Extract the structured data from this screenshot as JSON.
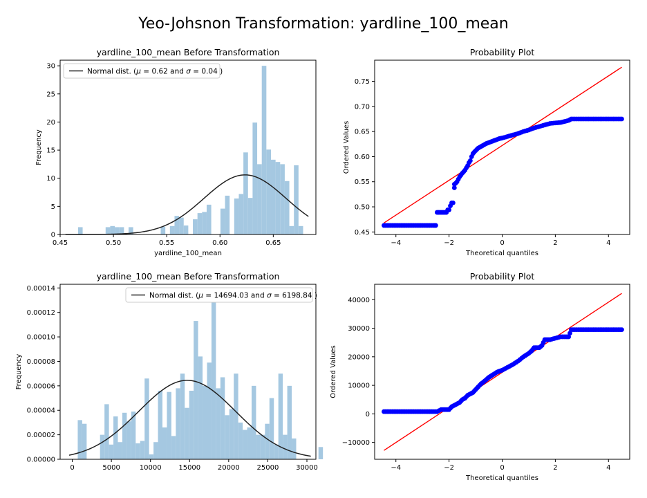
{
  "figure": {
    "suptitle": "Yeo-Johsnon Transformation: yardline_100_mean"
  },
  "colors": {
    "hist": "#a5c8e1",
    "curve": "#222222",
    "points": "#0000ff",
    "line": "#ff0000",
    "axis": "#000000"
  },
  "chart_data": [
    {
      "id": "hist_before",
      "type": "bar",
      "title": "yardline_100_mean Before Transformation",
      "xlabel": "yardline_100_mean",
      "ylabel": "Frequency",
      "xlim": [
        0.45,
        0.69
      ],
      "ylim": [
        0,
        31
      ],
      "xticks": [
        0.45,
        0.5,
        0.55,
        0.6,
        0.65
      ],
      "xtick_labels": [
        "0.45",
        "0.50",
        "0.55",
        "0.60",
        "0.65"
      ],
      "yticks": [
        0,
        5,
        10,
        15,
        20,
        25,
        30
      ],
      "ytick_labels": [
        "0",
        "5",
        "10",
        "15",
        "20",
        "25",
        "30"
      ],
      "bin_start": 0.4625,
      "bin_width": 0.00431,
      "values": [
        0,
        1.3,
        0,
        0,
        0,
        0,
        0,
        1.3,
        1.5,
        1.3,
        1.3,
        0,
        1.3,
        0,
        0,
        0,
        0,
        0,
        0,
        1.4,
        0,
        1.5,
        3.3,
        3.0,
        1.6,
        0,
        2.7,
        3.8,
        4.0,
        5.3,
        0,
        0,
        4.6,
        6.9,
        0,
        6.4,
        7.2,
        14.6,
        6.5,
        19.9,
        12.5,
        30.0,
        15.1,
        13.3,
        12.9,
        12.5,
        9.5,
        1.5,
        12.3,
        1.5
      ],
      "curve": {
        "mean": 0.6235,
        "sd": 0.0385,
        "peak": 10.6,
        "x_start": 0.455,
        "x_end": 0.683
      },
      "legend": "Normal dist. ($\\mu=$ 0.62 and $\\sigma=$ 0.04 )",
      "legend_position": "top-left"
    },
    {
      "id": "prob_before",
      "type": "scatter",
      "title": "Probability Plot",
      "xlabel": "Theoretical quantiles",
      "ylabel": "Ordered Values",
      "xlim": [
        -4.8,
        4.8
      ],
      "ylim": [
        0.445,
        0.792
      ],
      "xticks": [
        -4,
        -2,
        0,
        2,
        4
      ],
      "xtick_labels": [
        "−4",
        "−2",
        "0",
        "2",
        "4"
      ],
      "yticks": [
        0.45,
        0.5,
        0.55,
        0.6,
        0.65,
        0.7,
        0.75
      ],
      "ytick_labels": [
        "0.45",
        "0.50",
        "0.55",
        "0.60",
        "0.65",
        "0.70",
        "0.75"
      ],
      "points_x": [
        -4.45,
        -4.2,
        -4.0,
        -3.8,
        -3.6,
        -3.4,
        -3.2,
        -3.0,
        -2.8,
        -2.6,
        -2.5,
        -2.45,
        -2.4,
        -2.3,
        -2.2,
        -2.1,
        -2.05,
        -2.0,
        -1.95,
        -1.9,
        -1.85,
        -1.8,
        -1.8,
        -1.75,
        -1.7,
        -1.65,
        -1.6,
        -1.5,
        -1.4,
        -1.3,
        -1.25,
        -1.2,
        -1.15,
        -1.1,
        -1.0,
        -0.9,
        -0.8,
        -0.7,
        -0.6,
        -0.5,
        -0.4,
        -0.3,
        -0.2,
        -0.1,
        0.0,
        0.2,
        0.4,
        0.6,
        0.8,
        1.0,
        1.2,
        1.4,
        1.6,
        1.8,
        2.0,
        2.2,
        2.5,
        2.6,
        3.0,
        3.5,
        4.0,
        4.5
      ],
      "points_y": [
        0.463,
        0.463,
        0.463,
        0.463,
        0.463,
        0.463,
        0.463,
        0.463,
        0.463,
        0.463,
        0.463,
        0.489,
        0.489,
        0.489,
        0.489,
        0.489,
        0.494,
        0.494,
        0.502,
        0.508,
        0.508,
        0.538,
        0.545,
        0.547,
        0.55,
        0.555,
        0.56,
        0.567,
        0.573,
        0.582,
        0.588,
        0.592,
        0.6,
        0.606,
        0.612,
        0.617,
        0.62,
        0.623,
        0.626,
        0.628,
        0.63,
        0.632,
        0.634,
        0.636,
        0.637,
        0.64,
        0.643,
        0.646,
        0.65,
        0.653,
        0.657,
        0.66,
        0.663,
        0.666,
        0.667,
        0.668,
        0.672,
        0.675,
        0.675,
        0.675,
        0.675,
        0.675
      ],
      "fit_line": {
        "x": [
          -4.45,
          4.5
        ],
        "y": [
          0.468,
          0.778
        ]
      }
    },
    {
      "id": "hist_after",
      "type": "bar",
      "title": "yardline_100_mean Before Transformation",
      "xlabel": "",
      "ylabel": "Frequency",
      "xlim": [
        -1550,
        31150
      ],
      "ylim": [
        0,
        0.000143
      ],
      "xticks": [
        0,
        5000,
        10000,
        15000,
        20000,
        25000,
        30000
      ],
      "xtick_labels": [
        "0",
        "5000",
        "10000",
        "15000",
        "20000",
        "25000",
        "30000"
      ],
      "yticks": [
        0,
        2e-05,
        4e-05,
        6e-05,
        8e-05,
        0.0001,
        0.00012,
        0.00014
      ],
      "ytick_labels": [
        "0.00000",
        "0.00002",
        "0.00004",
        "0.00006",
        "0.00008",
        "0.00010",
        "0.00012",
        "0.00014"
      ],
      "bin_start": 700,
      "bin_width": 570,
      "values": [
        3.2e-05,
        2.9e-05,
        0,
        0,
        0,
        2e-05,
        4.5e-05,
        1.2e-05,
        3.5e-05,
        1.4e-05,
        3.8e-05,
        3.1e-05,
        3.9e-05,
        1.3e-05,
        1.5e-05,
        6.6e-05,
        4e-06,
        1.4e-05,
        5.6e-05,
        2.6e-05,
        5.5e-05,
        1.9e-05,
        5.8e-05,
        7e-05,
        4.2e-05,
        5.6e-05,
        0.000113,
        8.4e-05,
        6e-05,
        7.9e-05,
        0.00013,
        5.8e-05,
        6.7e-05,
        3.6e-05,
        4.1e-05,
        7e-05,
        3e-05,
        2.4e-05,
        2.6e-05,
        6e-05,
        2e-05,
        2e-05,
        2.9e-05,
        5e-05,
        1.2e-05,
        7e-05,
        2e-05,
        6e-05,
        1.7e-05,
        0,
        0,
        0,
        0,
        0,
        1e-05
      ],
      "curve": {
        "mean": 14694.03,
        "sd": 6198.84,
        "peak": 6.45e-05,
        "x_start": -400,
        "x_end": 30500
      },
      "legend": "Normal dist. ($\\mu=$ 14694.03 and $\\sigma=$ 6198.84 )",
      "legend_position": "top-right"
    },
    {
      "id": "prob_after",
      "type": "scatter",
      "title": "Probability Plot",
      "xlabel": "Theoretical quantiles",
      "ylabel": "Ordered Values",
      "xlim": [
        -4.8,
        4.8
      ],
      "ylim": [
        -15900,
        45400
      ],
      "xticks": [
        -4,
        -2,
        0,
        2,
        4
      ],
      "xtick_labels": [
        "−4",
        "−2",
        "0",
        "2",
        "4"
      ],
      "yticks": [
        -10000,
        0,
        10000,
        20000,
        30000,
        40000
      ],
      "ytick_labels": [
        "−10000",
        "0",
        "10000",
        "20000",
        "30000",
        "40000"
      ],
      "points_x": [
        -4.45,
        -4.2,
        -4.0,
        -3.8,
        -3.6,
        -3.4,
        -3.2,
        -3.0,
        -2.8,
        -2.6,
        -2.45,
        -2.3,
        -2.2,
        -2.1,
        -2.0,
        -1.9,
        -1.8,
        -1.7,
        -1.6,
        -1.5,
        -1.4,
        -1.3,
        -1.2,
        -1.1,
        -1.0,
        -0.9,
        -0.8,
        -0.7,
        -0.6,
        -0.5,
        -0.4,
        -0.3,
        -0.2,
        -0.1,
        0.0,
        0.2,
        0.4,
        0.6,
        0.8,
        1.0,
        1.1,
        1.2,
        1.3,
        1.4,
        1.5,
        1.6,
        1.7,
        1.8,
        2.0,
        2.2,
        2.4,
        2.5,
        2.6,
        3.0,
        3.5,
        4.0,
        4.5
      ],
      "points_y": [
        800,
        800,
        800,
        800,
        800,
        800,
        800,
        800,
        800,
        800,
        800,
        1500,
        1500,
        1500,
        1500,
        2500,
        3000,
        3500,
        4000,
        5000,
        5500,
        6500,
        7000,
        7500,
        8500,
        9500,
        10500,
        11200,
        12000,
        12800,
        13400,
        14000,
        14600,
        15000,
        15300,
        16300,
        17300,
        18500,
        20000,
        21200,
        22000,
        23200,
        23200,
        23200,
        24000,
        26000,
        26000,
        26000,
        26500,
        27000,
        27000,
        27000,
        29500,
        29500,
        29500,
        29500,
        29500
      ],
      "fit_line": {
        "x": [
          -4.45,
          4.5
        ],
        "y": [
          -12800,
          42200
        ]
      }
    }
  ]
}
